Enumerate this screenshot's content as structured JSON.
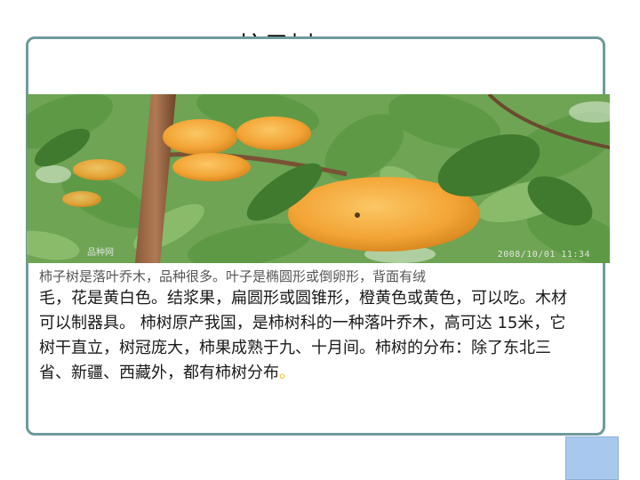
{
  "slide": {
    "title": "柿子树",
    "photo": {
      "timestamp": "2008/10/01 11:34",
      "watermark": "品种网"
    },
    "paragraph": {
      "line_partial": "柿子树是落叶乔木，品种很多。叶子是椭圆形或倒卵形，背面有绒",
      "body": "毛，花是黄白色。结浆果，扁圆形或圆锥形，橙黄色或黄色，可以吃。木材可以制器具。 柿树原产我国，是柿树科的一种落叶乔木，高可达 15米，它树干直立，树冠庞大，柿果成熟于九、十月间。柿树的分布：除了东北三省、新疆、西藏外，都有柿树分布",
      "end_mark": "。"
    }
  },
  "colors": {
    "frame_border": "#6f9a9b",
    "persimmon": "#f4a83a",
    "leaf": "#4f8c3a",
    "corner_box": "#a9c8ee"
  }
}
